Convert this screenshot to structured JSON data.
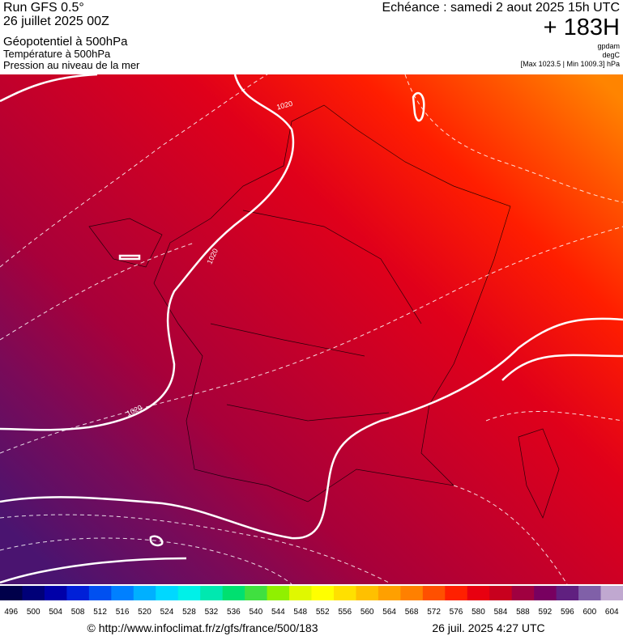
{
  "header": {
    "run": "Run GFS 0.5°",
    "date": "26 juillet 2025 00Z",
    "field1": "Géopotentiel à 500hPa",
    "field2": "Température à 500hPa",
    "field3": "Pression au niveau de la mer",
    "valid": "Echéance : samedi 2 aout 2025 15h UTC",
    "lead": "+ 183H",
    "unit1": "gpdam",
    "unit2": "degC",
    "range": "[Max 1023.5 | Min 1009.3] hPa"
  },
  "map": {
    "contour_labels": [
      "1020",
      "1020",
      "1020"
    ]
  },
  "colorbar": {
    "ticks": [
      496,
      500,
      504,
      508,
      512,
      516,
      520,
      524,
      528,
      532,
      536,
      540,
      544,
      548,
      552,
      556,
      560,
      564,
      568,
      572,
      576,
      580,
      584,
      588,
      592,
      596,
      600,
      604
    ],
    "colors": [
      "#00004a",
      "#000078",
      "#0000a8",
      "#0020d8",
      "#0050f0",
      "#0080ff",
      "#00b0ff",
      "#00d8ff",
      "#00f0e8",
      "#00e8b0",
      "#00e070",
      "#40e040",
      "#90f000",
      "#e0f800",
      "#ffff00",
      "#ffe000",
      "#ffc000",
      "#ffa000",
      "#ff8000",
      "#ff5000",
      "#ff2000",
      "#e80010",
      "#c8001e",
      "#a00040",
      "#780060",
      "#602080",
      "#8060a8",
      "#c0a8d0"
    ]
  },
  "footer": {
    "url": "© http://www.infoclimat.fr/z/gfs/france/500/183",
    "stamp": "26 juil. 2025  4:27 UTC"
  }
}
